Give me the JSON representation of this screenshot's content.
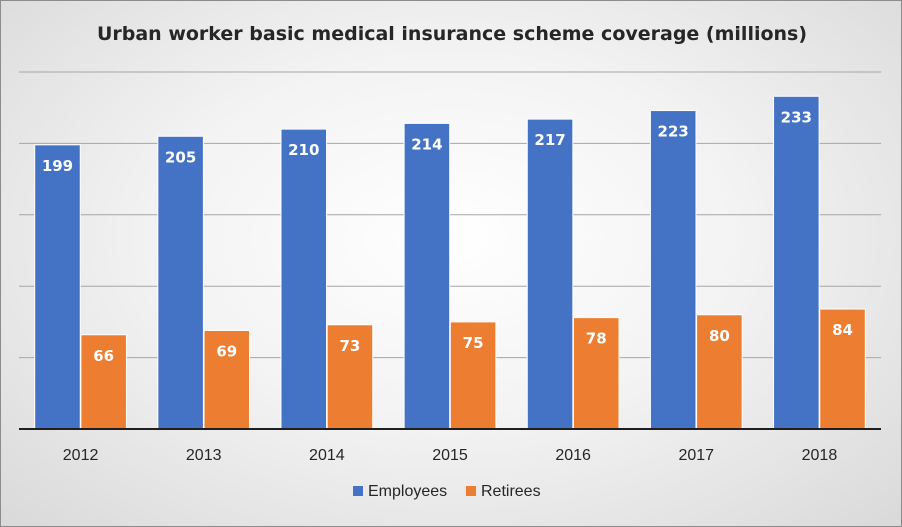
{
  "chart_data": {
    "type": "bar",
    "title": "Urban worker basic medical insurance scheme coverage (millions)",
    "xlabel": "",
    "ylabel": "",
    "categories": [
      "2012",
      "2013",
      "2014",
      "2015",
      "2016",
      "2017",
      "2018"
    ],
    "series": [
      {
        "name": "Employees",
        "values": [
          199,
          205,
          210,
          214,
          217,
          223,
          233
        ],
        "color": "#4472C4"
      },
      {
        "name": "Retirees",
        "values": [
          66,
          69,
          73,
          75,
          78,
          80,
          84
        ],
        "color": "#ED7D31"
      }
    ],
    "ylim": [
      0,
      250
    ],
    "gridlines": [
      0,
      50,
      100,
      150,
      200,
      250
    ],
    "y_tick_labels_shown": false,
    "grid": true,
    "data_labels": true,
    "legend": "bottom-center"
  }
}
